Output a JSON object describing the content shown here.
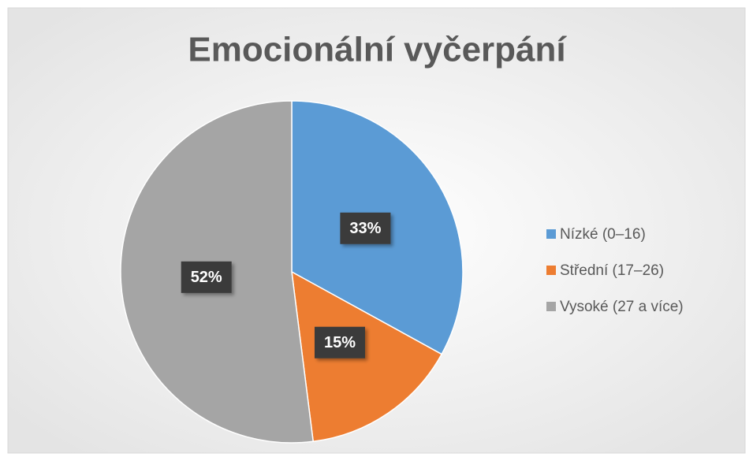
{
  "chart_data": {
    "type": "pie",
    "title": "Emocionální vyčerpání",
    "categories": [
      "Nízké (0–16)",
      "Střední (17–26)",
      "Vysoké (27 a více)"
    ],
    "values": [
      33,
      15,
      52
    ],
    "value_labels": [
      "33%",
      "15%",
      "52%"
    ],
    "colors": [
      "#5b9bd5",
      "#ed7d31",
      "#a5a5a5"
    ],
    "legend": "right"
  }
}
